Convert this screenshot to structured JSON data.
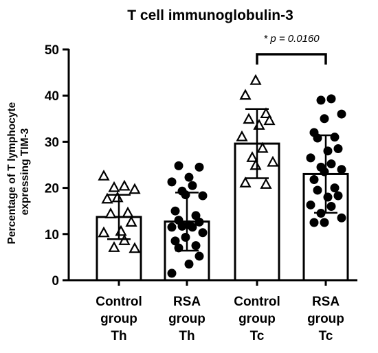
{
  "chart_data": {
    "type": "bar",
    "title": "T cell immunoglobulin-3",
    "ylabel_lines": [
      "Percentage of T lymphocyte",
      "expressing TIM-3"
    ],
    "ylim": [
      0,
      50
    ],
    "yticks": [
      0,
      10,
      20,
      30,
      40,
      50
    ],
    "categories": [
      [
        "Control",
        "group",
        "Th"
      ],
      [
        "RSA",
        "group",
        "Th"
      ],
      [
        "Control",
        "group",
        "Tc"
      ],
      [
        "RSA",
        "group",
        "Tc"
      ]
    ],
    "series": [
      {
        "mean": 13.7,
        "sd": 4.8,
        "marker": "triangle-open",
        "points": [
          22.5,
          20.3,
          20.0,
          19.6,
          17.8,
          17.5,
          14.5,
          14.3,
          12.5,
          10.5,
          10.2,
          8.5,
          7.0,
          6.8
        ]
      },
      {
        "mean": 12.7,
        "sd": 6.3,
        "marker": "circle-filled",
        "points": [
          24.8,
          24.5,
          22.3,
          21.3,
          20.5,
          19.3,
          18.3,
          18.5,
          15.0,
          14.0,
          13.0,
          12.6,
          12.0,
          11.5,
          11.5,
          11.7,
          10.3,
          9.3,
          8.5,
          7.5,
          7.0,
          5.2,
          3.5,
          1.5
        ]
      },
      {
        "mean": 29.6,
        "sd": 7.5,
        "marker": "triangle-open",
        "points": [
          43.2,
          40.0,
          36.0,
          34.8,
          34.5,
          33.5,
          31.0,
          28.5,
          26.5,
          25.5,
          24.8,
          21.0,
          20.7
        ]
      },
      {
        "mean": 23.0,
        "sd": 8.4,
        "marker": "circle-filled",
        "points": [
          39.3,
          39.0,
          36.0,
          35.0,
          32.0,
          31.0,
          30.8,
          28.5,
          28.0,
          26.5,
          25.2,
          24.5,
          24.0,
          23.5,
          21.8,
          20.0,
          19.5,
          18.3,
          18.0,
          16.3,
          16.0,
          14.5,
          13.5,
          12.5,
          12.5
        ]
      }
    ],
    "significance": {
      "from": 2,
      "to": 3,
      "text": "* p = 0.0160"
    }
  }
}
